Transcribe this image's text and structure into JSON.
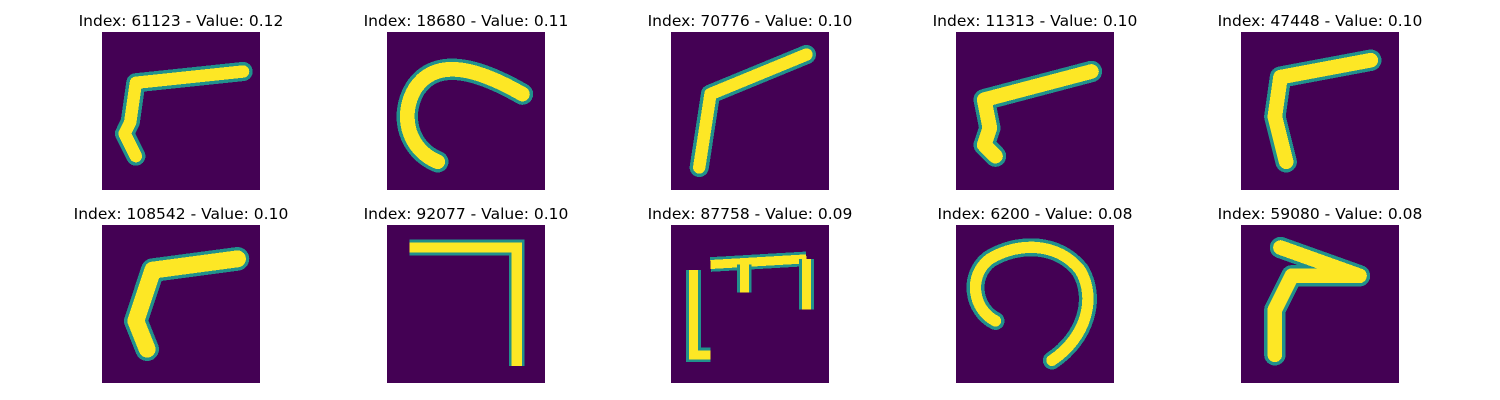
{
  "figure": {
    "colormap": "viridis",
    "background_color": "#440154",
    "stroke_color": "#fde725",
    "edge_color": "#21918c",
    "panels": [
      {
        "title": "Index: 61123 - Value: 0.12",
        "glyph": "angled-stroke"
      },
      {
        "title": "Index: 18680 - Value: 0.11",
        "glyph": "hook-curve"
      },
      {
        "title": "Index: 70776 - Value: 0.10",
        "glyph": "angled-stroke"
      },
      {
        "title": "Index: 11313 - Value: 0.10",
        "glyph": "angled-stroke"
      },
      {
        "title": "Index: 47448 - Value: 0.10",
        "glyph": "angled-stroke"
      },
      {
        "title": "Index: 108542 - Value: 0.10",
        "glyph": "angled-stroke"
      },
      {
        "title": "Index: 92077 - Value: 0.10",
        "glyph": "corner-seven"
      },
      {
        "title": "Index: 87758 - Value: 0.09",
        "glyph": "m-shape"
      },
      {
        "title": "Index: 6200 - Value: 0.08",
        "glyph": "open-loop"
      },
      {
        "title": "Index: 59080 - Value: 0.08",
        "glyph": "angled-stroke"
      }
    ]
  }
}
